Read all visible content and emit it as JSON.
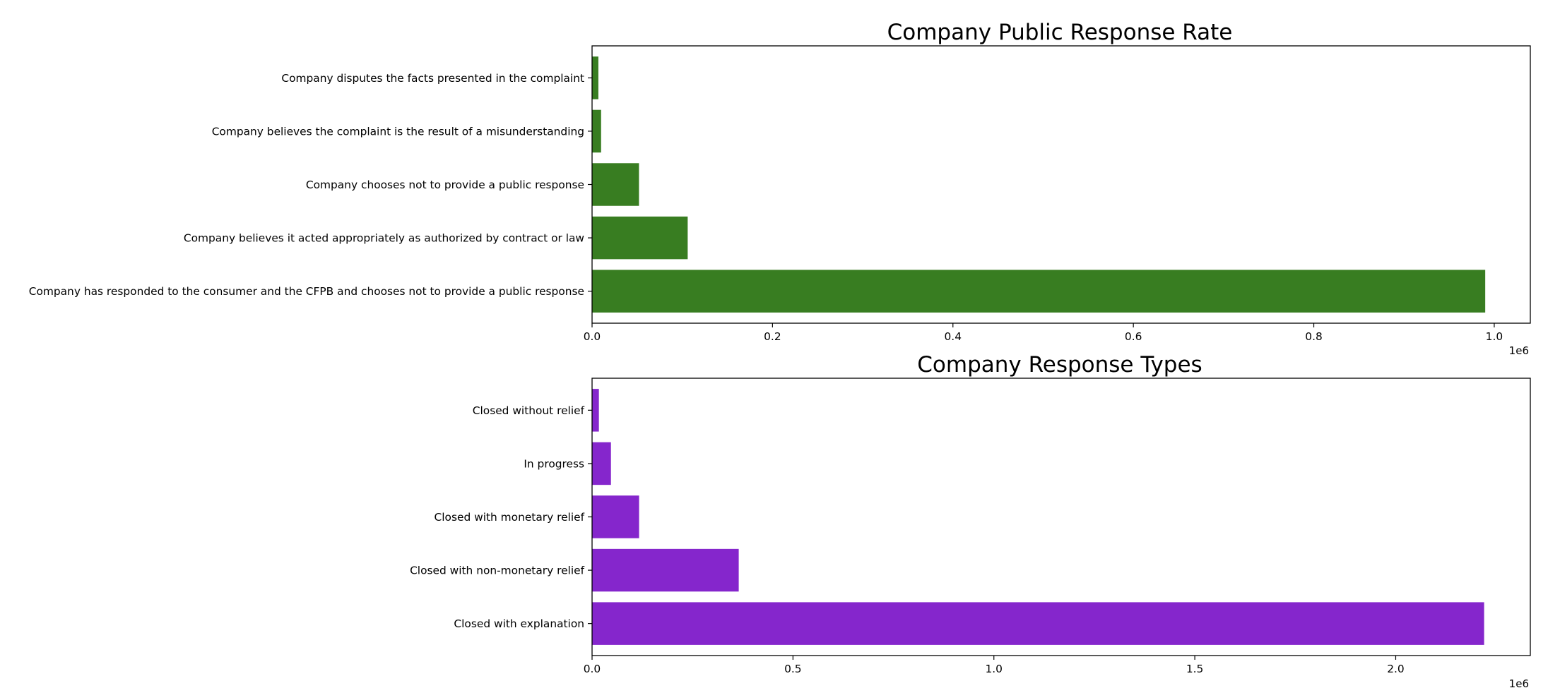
{
  "chart_data": [
    {
      "type": "bar",
      "orientation": "horizontal",
      "title": "Company Public Response Rate",
      "xlabel": "",
      "ylabel": "",
      "x_offset_label": "1e6",
      "categories": [
        "Company has responded to the consumer and the CFPB and chooses not to provide a public response",
        "Company believes it acted appropriately as authorized by contract or law",
        "Company chooses not to provide a public response",
        "Company believes the complaint is the result of a misunderstanding",
        "Company disputes the facts presented in the complaint"
      ],
      "values": [
        990000,
        106000,
        52000,
        10000,
        7000
      ],
      "xlim": [
        0,
        1040000
      ],
      "xticks": [
        0,
        200000,
        400000,
        600000,
        800000,
        1000000
      ],
      "xtick_labels": [
        "0.0",
        "0.2",
        "0.4",
        "0.6",
        "0.8",
        "1.0"
      ],
      "bar_color": "#387d21",
      "grid": false
    },
    {
      "type": "bar",
      "orientation": "horizontal",
      "title": "Company Response Types",
      "xlabel": "",
      "ylabel": "",
      "x_offset_label": "1e6",
      "categories": [
        "Closed with explanation",
        "Closed with non-monetary relief",
        "Closed with monetary relief",
        "In progress",
        "Closed without relief"
      ],
      "values": [
        2220000,
        365000,
        117000,
        47000,
        17000
      ],
      "xlim": [
        0,
        2335000
      ],
      "xticks": [
        0,
        500000,
        1000000,
        1500000,
        2000000
      ],
      "xtick_labels": [
        "0.0",
        "0.5",
        "1.0",
        "1.5",
        "2.0"
      ],
      "bar_color": "#8526cc",
      "grid": false
    }
  ]
}
